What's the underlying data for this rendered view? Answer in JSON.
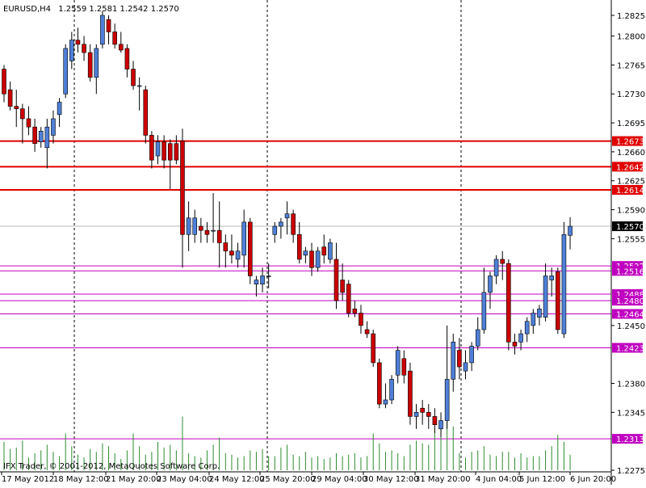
{
  "header": {
    "symbol": "EURUSD,H4",
    "ohlc": "1.2559 1.2581 1.2542 1.2570"
  },
  "footer": {
    "copyright": "IFX Trader, © 2001-2012, MetaQuotes Software Corp."
  },
  "colors": {
    "bull": "#4f7fd6",
    "bear": "#cc0000",
    "resistance": "#e00000",
    "support": "#c000c0",
    "volume": "#2e8b2e",
    "bid_line": "#b8b8b8"
  },
  "chart_data": {
    "type": "candlestick",
    "title": "EURUSD,H4",
    "y_ticks": [
      "1.2825",
      "1.2800",
      "1.2765",
      "1.2730",
      "1.2695",
      "1.2660",
      "1.2625",
      "1.2590",
      "1.2555",
      "1.2450",
      "1.2380",
      "1.2345",
      "1.2275"
    ],
    "ylim": [
      1.2266,
      1.2838
    ],
    "x_tick_labels": [
      "17 May 2012",
      "18 May 12:00",
      "21 May 20:00",
      "23 May 04:00",
      "24 May 12:00",
      "25 May 20:00",
      "29 May 04:00",
      "30 May 12:00",
      "31 May 20:00",
      "4 Jun 04:00",
      "5 Jun 12:00",
      "6 Jun 20:00"
    ],
    "day_separator_labels": [
      "18 May 12:00",
      "25 May 20:00",
      "31 May 20:00"
    ],
    "current_price": "1.2570",
    "resistance_levels": [
      "1.2673",
      "1.2642",
      "1.2614"
    ],
    "support_levels": [
      "1.2522",
      "1.2516",
      "1.2488",
      "1.2480",
      "1.2464",
      "1.2423",
      "1.2313"
    ],
    "candles": [
      [
        1.276,
        1.2765,
        1.272,
        1.273
      ],
      [
        1.2735,
        1.2745,
        1.271,
        1.2715
      ],
      [
        1.2715,
        1.2735,
        1.269,
        1.2712
      ],
      [
        1.2712,
        1.2718,
        1.267,
        1.27
      ],
      [
        1.27,
        1.2715,
        1.268,
        1.269
      ],
      [
        1.269,
        1.27,
        1.266,
        1.267
      ],
      [
        1.2672,
        1.269,
        1.2665,
        1.2685
      ],
      [
        1.2665,
        1.27,
        1.264,
        1.269
      ],
      [
        1.268,
        1.271,
        1.267,
        1.27
      ],
      [
        1.2705,
        1.2725,
        1.269,
        1.272
      ],
      [
        1.273,
        1.279,
        1.2725,
        1.2785
      ],
      [
        1.277,
        1.2805,
        1.276,
        1.2795
      ],
      [
        1.2795,
        1.281,
        1.278,
        1.279
      ],
      [
        1.279,
        1.28,
        1.277,
        1.278
      ],
      [
        1.278,
        1.279,
        1.2745,
        1.275
      ],
      [
        1.275,
        1.279,
        1.273,
        1.2785
      ],
      [
        1.279,
        1.283,
        1.2785,
        1.2825
      ],
      [
        1.282,
        1.2825,
        1.279,
        1.2805
      ],
      [
        1.2805,
        1.2815,
        1.2785,
        1.279
      ],
      [
        1.279,
        1.2805,
        1.278,
        1.2783
      ],
      [
        1.2785,
        1.279,
        1.275,
        1.276
      ],
      [
        1.276,
        1.277,
        1.2735,
        1.274
      ],
      [
        1.274,
        1.275,
        1.271,
        1.274
      ],
      [
        1.2735,
        1.274,
        1.267,
        1.268
      ],
      [
        1.268,
        1.2685,
        1.264,
        1.265
      ],
      [
        1.2655,
        1.268,
        1.2645,
        1.2672
      ],
      [
        1.2672,
        1.268,
        1.264,
        1.265
      ],
      [
        1.267,
        1.2675,
        1.2615,
        1.265
      ],
      [
        1.267,
        1.268,
        1.2645,
        1.265
      ],
      [
        1.2673,
        1.2688,
        1.252,
        1.256
      ],
      [
        1.256,
        1.26,
        1.254,
        1.258
      ],
      [
        1.256,
        1.259,
        1.255,
        1.258
      ],
      [
        1.257,
        1.258,
        1.255,
        1.2565
      ],
      [
        1.2565,
        1.2575,
        1.255,
        1.256
      ],
      [
        1.2565,
        1.261,
        1.255,
        1.2565
      ],
      [
        1.2565,
        1.26,
        1.252,
        1.255
      ],
      [
        1.255,
        1.256,
        1.252,
        1.254
      ],
      [
        1.254,
        1.256,
        1.2525,
        1.2535
      ],
      [
        1.253,
        1.255,
        1.252,
        1.254
      ],
      [
        1.2535,
        1.259,
        1.252,
        1.2575
      ],
      [
        1.2575,
        1.258,
        1.25,
        1.251
      ],
      [
        1.25,
        1.251,
        1.2485,
        1.2505
      ],
      [
        1.25,
        1.252,
        1.249,
        1.251
      ],
      [
        1.251,
        1.2525,
        1.2495,
        1.251
      ],
      [
        1.256,
        1.2575,
        1.255,
        1.257
      ],
      [
        1.257,
        1.258,
        1.2555,
        1.2575
      ],
      [
        1.258,
        1.26,
        1.256,
        1.2585
      ],
      [
        1.2585,
        1.259,
        1.255,
        1.256
      ],
      [
        1.256,
        1.2575,
        1.2525,
        1.253
      ],
      [
        1.2535,
        1.2545,
        1.2525,
        1.254
      ],
      [
        1.254,
        1.255,
        1.251,
        1.252
      ],
      [
        1.252,
        1.2545,
        1.2515,
        1.254
      ],
      [
        1.2545,
        1.256,
        1.2525,
        1.2535
      ],
      [
        1.253,
        1.2555,
        1.2525,
        1.255
      ],
      [
        1.253,
        1.255,
        1.247,
        1.248
      ],
      [
        1.2505,
        1.2525,
        1.248,
        1.249
      ],
      [
        1.25,
        1.2505,
        1.246,
        1.2465
      ],
      [
        1.247,
        1.248,
        1.246,
        1.2465
      ],
      [
        1.2465,
        1.2475,
        1.244,
        1.245
      ],
      [
        1.2445,
        1.2455,
        1.2435,
        1.244
      ],
      [
        1.244,
        1.2445,
        1.24,
        1.2405
      ],
      [
        1.2405,
        1.241,
        1.235,
        1.2355
      ],
      [
        1.2355,
        1.238,
        1.235,
        1.236
      ],
      [
        1.236,
        1.239,
        1.2355,
        1.2385
      ],
      [
        1.239,
        1.2425,
        1.238,
        1.242
      ],
      [
        1.241,
        1.242,
        1.238,
        1.239
      ],
      [
        1.2395,
        1.2405,
        1.233,
        1.234
      ],
      [
        1.234,
        1.2355,
        1.2325,
        1.2345
      ],
      [
        1.235,
        1.236,
        1.233,
        1.2345
      ],
      [
        1.2345,
        1.2355,
        1.2325,
        1.234
      ],
      [
        1.234,
        1.235,
        1.232,
        1.233
      ],
      [
        1.2325,
        1.2345,
        1.2315,
        1.2335
      ],
      [
        1.2335,
        1.245,
        1.2325,
        1.2385
      ],
      [
        1.2385,
        1.244,
        1.237,
        1.243
      ],
      [
        1.242,
        1.2435,
        1.2385,
        1.24
      ],
      [
        1.2395,
        1.242,
        1.2385,
        1.2405
      ],
      [
        1.2405,
        1.243,
        1.2395,
        1.2425
      ],
      [
        1.2425,
        1.246,
        1.242,
        1.2445
      ],
      [
        1.2445,
        1.252,
        1.244,
        1.249
      ],
      [
        1.249,
        1.2515,
        1.247,
        1.251
      ],
      [
        1.251,
        1.2535,
        1.25,
        1.253
      ],
      [
        1.253,
        1.254,
        1.2505,
        1.2525
      ],
      [
        1.2525,
        1.253,
        1.242,
        1.243
      ],
      [
        1.243,
        1.244,
        1.2415,
        1.2425
      ],
      [
        1.243,
        1.2445,
        1.242,
        1.244
      ],
      [
        1.244,
        1.246,
        1.243,
        1.2455
      ],
      [
        1.245,
        1.247,
        1.244,
        1.2465
      ],
      [
        1.246,
        1.2475,
        1.245,
        1.247
      ],
      [
        1.246,
        1.2525,
        1.2455,
        1.251
      ],
      [
        1.2505,
        1.252,
        1.2485,
        1.251
      ],
      [
        1.2515,
        1.252,
        1.244,
        1.2445
      ],
      [
        1.244,
        1.2575,
        1.2435,
        1.256
      ],
      [
        1.2559,
        1.2581,
        1.2542,
        1.257
      ]
    ],
    "volumes": [
      2000,
      1500,
      1600,
      2100,
      900,
      1200,
      1400,
      1800,
      1300,
      1000,
      2600,
      1700,
      1100,
      900,
      1500,
      1300,
      1900,
      1700,
      1200,
      800,
      1400,
      2600,
      1700,
      1100,
      1300,
      2000,
      1600,
      1800,
      1400,
      3800,
      1200,
      1000,
      900,
      1400,
      1800,
      2300,
      1200,
      1100,
      900,
      1000,
      1400,
      1300,
      1500,
      1000,
      1000,
      1600,
      1800,
      1100,
      1000,
      1300,
      900,
      1000,
      800,
      900,
      1200,
      1000,
      1100,
      1200,
      900,
      1000,
      2600,
      1900,
      1300,
      1400,
      1200,
      1000,
      1800,
      2100,
      1900,
      1800,
      2800,
      3200,
      3600,
      3100,
      1200,
      900,
      1300,
      1400,
      1700,
      1100,
      1000,
      1300,
      1300,
      900,
      1200,
      900,
      1000,
      1000,
      1400,
      1700,
      2500,
      2000,
      1100
    ],
    "volume_max": 4000
  }
}
